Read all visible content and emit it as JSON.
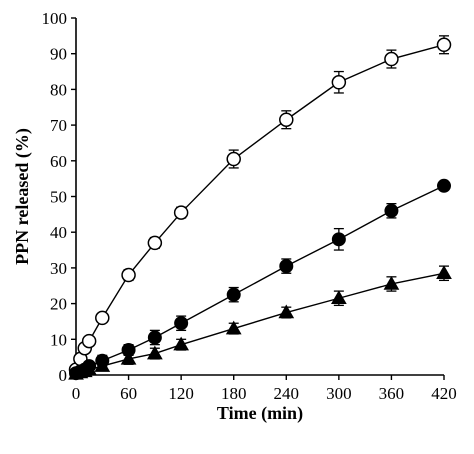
{
  "chart_data": {
    "type": "line",
    "xlabel": "Time (min)",
    "ylabel": "PPN released (%)",
    "xlim": [
      0,
      420
    ],
    "ylim": [
      0,
      100
    ],
    "xticks": [
      0,
      60,
      120,
      180,
      240,
      300,
      360,
      420
    ],
    "yticks": [
      0,
      10,
      20,
      30,
      40,
      50,
      60,
      70,
      80,
      90,
      100
    ],
    "grid": false,
    "legend": "none",
    "series": [
      {
        "marker": "open-circle",
        "x": [
          0,
          5,
          10,
          15,
          30,
          60,
          90,
          120,
          180,
          240,
          300,
          360,
          420
        ],
        "values": [
          1.5,
          4.5,
          7.5,
          9.5,
          16,
          28,
          37,
          45.5,
          60.5,
          71.5,
          82,
          88.5,
          92.5
        ],
        "error": [
          0,
          0,
          0,
          0,
          1,
          1.5,
          1.5,
          1.5,
          2.5,
          2.5,
          3,
          2.5,
          2.5
        ]
      },
      {
        "marker": "filled-circle",
        "x": [
          0,
          5,
          10,
          15,
          30,
          60,
          90,
          120,
          180,
          240,
          300,
          360,
          420
        ],
        "values": [
          0.5,
          1,
          1.5,
          2.5,
          4,
          7,
          10.5,
          14.5,
          22.5,
          30.5,
          38,
          46,
          53
        ],
        "error": [
          0,
          0,
          0,
          0,
          1.5,
          1.5,
          2,
          2,
          2,
          2,
          3,
          2,
          1
        ]
      },
      {
        "marker": "filled-triangle",
        "x": [
          0,
          5,
          10,
          15,
          30,
          60,
          90,
          120,
          180,
          240,
          300,
          360,
          420
        ],
        "values": [
          0.3,
          0.7,
          1,
          1.5,
          2.5,
          4.5,
          6,
          8.5,
          13,
          17.5,
          21.5,
          25.5,
          28.5
        ],
        "error": [
          0,
          0,
          0,
          0,
          1,
          1.5,
          1.5,
          1.5,
          1.5,
          1.5,
          2,
          2,
          2
        ]
      }
    ]
  }
}
